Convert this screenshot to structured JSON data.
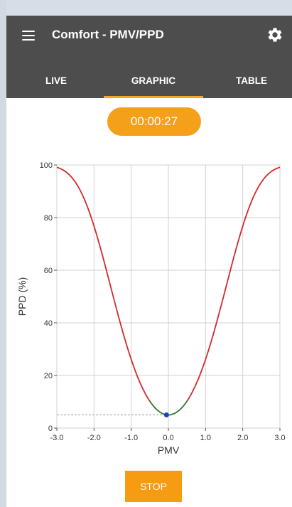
{
  "app": {
    "title": "Comfort - PMV/PPD",
    "menu_icon": "hamburger-menu-icon",
    "settings_icon": "gear-icon"
  },
  "tabs": [
    {
      "label": "LIVE",
      "active": false
    },
    {
      "label": "GRAPHIC",
      "active": true
    },
    {
      "label": "TABLE",
      "active": false
    }
  ],
  "timer": "00:00:27",
  "stop_label": "STOP",
  "colors": {
    "app_bar": "#4d4d4d",
    "accent": "#f5a01a",
    "curve": "#d42a2a",
    "comfort_zone": "#2e8b2e",
    "marker": "#1f3fd0"
  },
  "chart_data": {
    "type": "line",
    "xlabel": "PMV",
    "ylabel": "PPD (%)",
    "xlim": [
      -3.0,
      3.0
    ],
    "ylim": [
      0,
      100
    ],
    "x_ticks": [
      "-3.0",
      "-2.0",
      "-1.0",
      "0.0",
      "1.0",
      "2.0",
      "3.0"
    ],
    "y_ticks": [
      "0",
      "20",
      "40",
      "60",
      "80",
      "100"
    ],
    "grid": true,
    "series": [
      {
        "formula": "PPD = 100 - 95*exp(-0.03353*PMV^4 - 0.2179*PMV^2)",
        "x_range": [
          -3.0,
          3.0
        ],
        "color": "#d42a2a"
      },
      {
        "x_range": [
          -0.5,
          0.5
        ],
        "color": "#2e8b2e"
      }
    ],
    "current_point": {
      "x": -0.05,
      "y": 5.0
    }
  }
}
